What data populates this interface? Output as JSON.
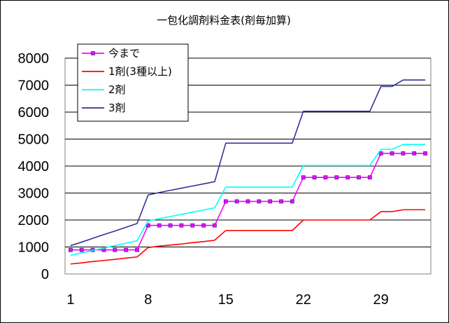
{
  "chart_data": {
    "type": "line",
    "title": "一包化調剤料金表(剤毎加算)",
    "xlabel": "",
    "ylabel": "",
    "x": [
      1,
      2,
      3,
      4,
      5,
      6,
      7,
      8,
      9,
      10,
      11,
      12,
      13,
      14,
      15,
      16,
      17,
      18,
      19,
      20,
      21,
      22,
      23,
      24,
      25,
      26,
      27,
      28,
      29,
      30,
      31,
      32,
      33
    ],
    "x_ticks": [
      "1",
      "8",
      "15",
      "22",
      "29"
    ],
    "x_tick_values": [
      1,
      8,
      15,
      22,
      29
    ],
    "ylim": [
      0,
      8000
    ],
    "y_ticks": [
      "0",
      "1000",
      "2000",
      "3000",
      "4000",
      "5000",
      "6000",
      "7000",
      "8000"
    ],
    "y_tick_values": [
      0,
      1000,
      2000,
      3000,
      4000,
      5000,
      6000,
      7000,
      8000
    ],
    "grid": "horizontal",
    "legend": "top-left",
    "series": [
      {
        "name": "今まで",
        "color": "#ff00ff",
        "marker": "square",
        "values": [
          890,
          890,
          890,
          890,
          890,
          890,
          890,
          1800,
          1800,
          1800,
          1800,
          1800,
          1800,
          1800,
          2690,
          2690,
          2690,
          2690,
          2690,
          2690,
          2690,
          3580,
          3580,
          3580,
          3580,
          3580,
          3580,
          3580,
          4470,
          4470,
          4470,
          4470,
          4470
        ]
      },
      {
        "name": "1剤(3種以上)",
        "color": "#ff0000",
        "marker": "none",
        "values": [
          370,
          410,
          460,
          500,
          540,
          590,
          630,
          980,
          1030,
          1070,
          1110,
          1160,
          1200,
          1250,
          1610,
          1610,
          1610,
          1610,
          1610,
          1610,
          1610,
          2000,
          2000,
          2000,
          2000,
          2000,
          2000,
          2000,
          2310,
          2310,
          2380,
          2380,
          2380
        ]
      },
      {
        "name": "2剤",
        "color": "#00ffff",
        "marker": "none",
        "values": [
          690,
          780,
          870,
          960,
          1050,
          1140,
          1230,
          1970,
          2050,
          2130,
          2210,
          2290,
          2370,
          2450,
          3220,
          3220,
          3220,
          3220,
          3220,
          3220,
          3220,
          4020,
          4020,
          4020,
          4020,
          4020,
          4020,
          4020,
          4620,
          4620,
          4800,
          4800,
          4800
        ]
      },
      {
        "name": "3剤",
        "color": "#333399",
        "marker": "none",
        "values": [
          1050,
          1180,
          1320,
          1460,
          1590,
          1730,
          1870,
          2930,
          3020,
          3100,
          3180,
          3260,
          3340,
          3420,
          4850,
          4850,
          4850,
          4850,
          4850,
          4850,
          4850,
          6030,
          6030,
          6030,
          6030,
          6030,
          6030,
          6030,
          6950,
          6950,
          7190,
          7190,
          7190
        ]
      }
    ]
  }
}
